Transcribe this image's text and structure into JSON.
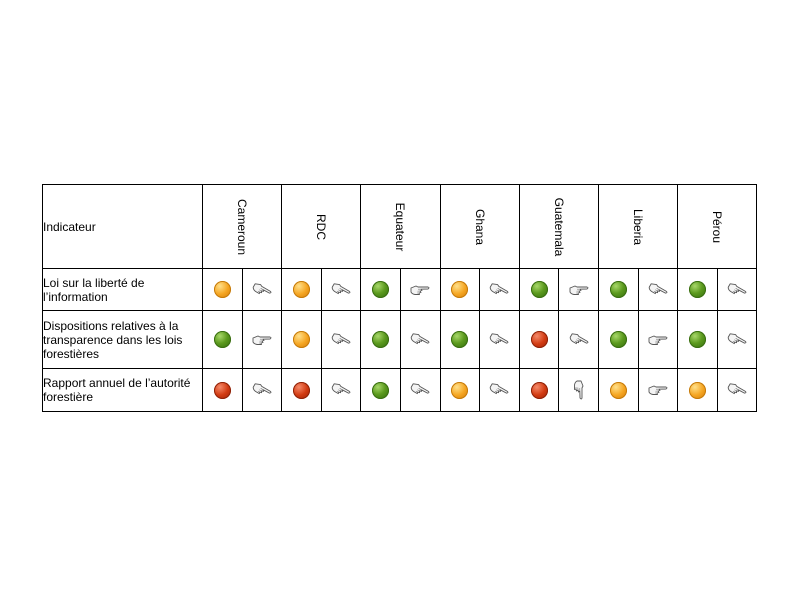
{
  "table": {
    "header": {
      "indicator_label": "Indicateur",
      "countries": [
        "Cameroun",
        "RDC",
        "Equateur",
        "Ghana",
        "Guatemala",
        "Liberia",
        "Pérou"
      ]
    },
    "rows": [
      {
        "label": "Loi sur la liberté de l’information",
        "status": [
          "orange",
          "orange",
          "green",
          "orange",
          "green",
          "green",
          "green"
        ],
        "trend": [
          "down-right",
          "down-right",
          "right",
          "down-right",
          "right",
          "down-right",
          "down-right"
        ]
      },
      {
        "label": "Dispositions relatives à la transparence dans les lois forestières",
        "status": [
          "green",
          "orange",
          "green",
          "green",
          "red",
          "green",
          "green"
        ],
        "trend": [
          "right",
          "down-right",
          "down-right",
          "down-right",
          "down-right",
          "right",
          "down-right"
        ]
      },
      {
        "label": "Rapport annuel de l’autorité forestière",
        "status": [
          "red",
          "red",
          "green",
          "orange",
          "red",
          "orange",
          "orange"
        ],
        "trend": [
          "down-right",
          "down-right",
          "down-right",
          "down-right",
          "down",
          "right",
          "down-right"
        ]
      }
    ]
  },
  "colors": {
    "green": "#5c9a1e",
    "orange": "#f5a623",
    "red": "#d23b12",
    "divider": "#4a7bc4"
  },
  "icons": {
    "status": "traffic-light-dot-icon",
    "trend": "pointing-hand-icon"
  }
}
